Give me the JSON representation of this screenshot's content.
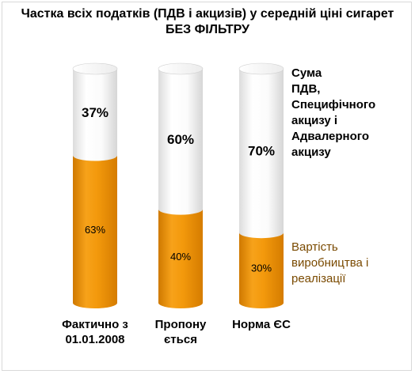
{
  "chart_data": {
    "type": "bar",
    "stacked": true,
    "shape": "cylinder",
    "title_lines": [
      "Частка всіх податків (ПДВ і акцизів) у середній ціні сигарет",
      "БЕЗ ФІЛЬТРУ"
    ],
    "categories": [
      [
        "Фактично з",
        "01.01.2008"
      ],
      [
        "Пропону",
        "ється"
      ],
      [
        "Норма ЄС"
      ]
    ],
    "ylim": [
      0,
      100
    ],
    "series": [
      {
        "name_lines": [
          "Вартість",
          "виробництва і",
          "реалізації"
        ],
        "values": [
          63,
          40,
          30
        ],
        "labels": [
          "63%",
          "40%",
          "30%"
        ],
        "color": "#f29a0c"
      },
      {
        "name_lines": [
          "Сума",
          "ПДВ,",
          "Специфічного",
          "акцизу і",
          "Адвалерного",
          "акцизу"
        ],
        "values": [
          37,
          60,
          70
        ],
        "labels": [
          "37%",
          "60%",
          "70%"
        ],
        "color": "#ffffff"
      }
    ],
    "legend_placement": "right",
    "grid": false
  }
}
